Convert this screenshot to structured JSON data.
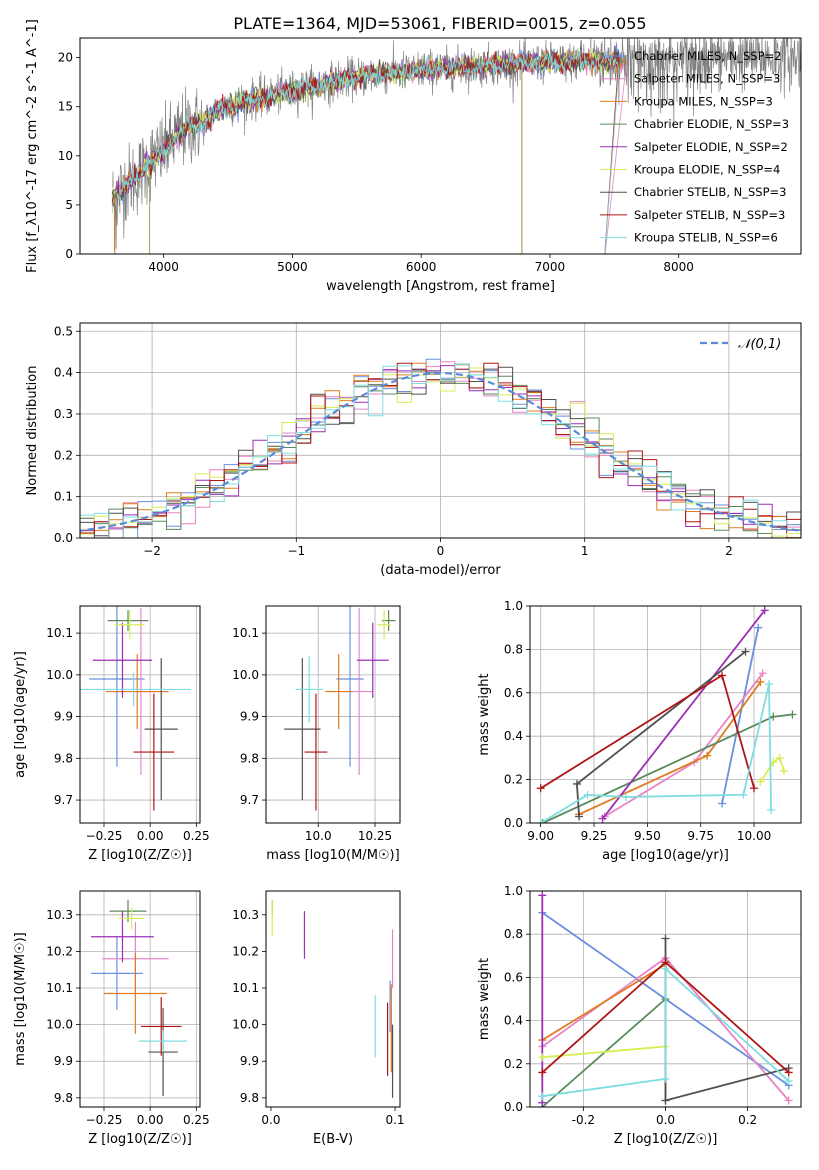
{
  "figure": {
    "title": "PLATE=1364, MJD=53061, FIBERID=0015, z=0.055"
  },
  "series_styles": [
    {
      "name": "Chabrier MILES, N_SSP=2",
      "color": "#6a8fe0"
    },
    {
      "name": "Salpeter MILES, N_SSP=3",
      "color": "#e884c6"
    },
    {
      "name": "Kroupa MILES, N_SSP=3",
      "color": "#e07b1e"
    },
    {
      "name": "Chabrier ELODIE, N_SSP=3",
      "color": "#5a8a5a"
    },
    {
      "name": "Salpeter ELODIE, N_SSP=2",
      "color": "#9b2fb5"
    },
    {
      "name": "Kroupa ELODIE, N_SSP=4",
      "color": "#d8ee55"
    },
    {
      "name": "Chabrier STELIB, N_SSP=3",
      "color": "#505050"
    },
    {
      "name": "Salpeter STELIB, N_SSP=3",
      "color": "#b01515"
    },
    {
      "name": "Kroupa STELIB, N_SSP=6",
      "color": "#7fdde0"
    }
  ],
  "chart_data": [
    {
      "id": "spectrum",
      "type": "line",
      "xlabel": "wavelength [Angstrom, rest frame]",
      "ylabel": "Flux [f_λ10^-17 erg cm^-2 s^-1 A^-1]",
      "xlim": [
        3350,
        8950
      ],
      "ylim": [
        0,
        22
      ],
      "xticks": [
        4000,
        5000,
        6000,
        7000,
        8000
      ],
      "yticks": [
        0,
        5,
        10,
        15,
        20
      ],
      "legend_position": "right",
      "data_color": "#808080",
      "continuum": {
        "x": [
          3600,
          3700,
          3800,
          3900,
          4000,
          4100,
          4200,
          4300,
          4400,
          4600,
          4800,
          5000,
          5200,
          5400,
          5600,
          5800,
          6000,
          6200,
          6400,
          6600,
          6800,
          7000,
          7200,
          7400,
          7600,
          7800,
          8000,
          8200,
          8400,
          8600,
          8800,
          8900
        ],
        "y": [
          5.5,
          7,
          8,
          9.5,
          10.5,
          12,
          13,
          13.2,
          14.5,
          15.5,
          16,
          16.6,
          17.2,
          17.8,
          18.2,
          18.5,
          18.7,
          18.9,
          19.1,
          19.3,
          19.4,
          19.5,
          19.6,
          19.7,
          19.8,
          19.8,
          19.9,
          19.9,
          20,
          20,
          20,
          20
        ]
      },
      "model_range": [
        3600,
        7600
      ],
      "data_range": [
        3600,
        9250
      ],
      "ending_drop_x": 7420
    },
    {
      "id": "residual_hist",
      "type": "histogram",
      "xlabel": "(data-model)/error",
      "ylabel": "Normed distribution",
      "xlim": [
        -2.5,
        2.5
      ],
      "ylim": [
        0,
        0.52
      ],
      "xticks": [
        -2,
        -1,
        0,
        1,
        2
      ],
      "yticks": [
        0.0,
        0.1,
        0.2,
        0.3,
        0.4,
        0.5
      ],
      "grid": true,
      "bin_width": 0.1,
      "legend": "𝒩(0,1)",
      "legend_position": "top-right",
      "normal_curve": {
        "mean": 0,
        "sigma": 1,
        "color": "#5a8ad8"
      }
    },
    {
      "id": "age_vs_Z",
      "type": "errorbar",
      "xlabel": "Z [log10(Z/Z☉)]",
      "ylabel": "age [log10(age/yr)]",
      "xlim": [
        -0.38,
        0.27
      ],
      "ylim": [
        9.645,
        10.165
      ],
      "xticks": [
        -0.25,
        0.0,
        0.25
      ],
      "yticks": [
        9.7,
        9.8,
        9.9,
        10.0,
        10.1
      ],
      "grid": true,
      "points": [
        {
          "s": 0,
          "x": -0.18,
          "xerr": 0.15,
          "y": 9.99,
          "yerr": 0.21
        },
        {
          "s": 1,
          "x": -0.05,
          "xerr": 0.15,
          "y": 9.96,
          "yerr": 0.2
        },
        {
          "s": 2,
          "x": -0.07,
          "xerr": 0.17,
          "y": 9.96,
          "yerr": 0.09
        },
        {
          "s": 3,
          "x": -0.12,
          "xerr": 0.11,
          "y": 10.13,
          "yerr": 0.025
        },
        {
          "s": 4,
          "x": -0.15,
          "xerr": 0.16,
          "y": 10.035,
          "yerr": 0.09
        },
        {
          "s": 5,
          "x": -0.11,
          "xerr": 0.08,
          "y": 10.12,
          "yerr": 0.035
        },
        {
          "s": 6,
          "x": 0.06,
          "xerr": 0.09,
          "y": 9.87,
          "yerr": 0.17
        },
        {
          "s": 7,
          "x": 0.02,
          "xerr": 0.11,
          "y": 9.815,
          "yerr": 0.14
        },
        {
          "s": 8,
          "x": -0.09,
          "xerr": 0.31,
          "y": 9.965,
          "yerr": 0.04
        }
      ]
    },
    {
      "id": "age_vs_mass",
      "type": "errorbar",
      "xlabel": "mass [log10(M/M☉)]",
      "ylabel": "",
      "xlim": [
        9.77,
        10.36
      ],
      "ylim": [
        9.645,
        10.165
      ],
      "xticks": [
        10.0,
        10.25
      ],
      "yticks": [
        9.7,
        9.8,
        9.9,
        10.0,
        10.1
      ],
      "grid": true,
      "points": [
        {
          "s": 0,
          "x": 10.14,
          "xerr": 0.06,
          "y": 9.99,
          "yerr": 0.21
        },
        {
          "s": 1,
          "x": 10.18,
          "xerr": 0.06,
          "y": 9.96,
          "yerr": 0.2
        },
        {
          "s": 2,
          "x": 10.09,
          "xerr": 0.06,
          "y": 9.96,
          "yerr": 0.09
        },
        {
          "s": 3,
          "x": 10.31,
          "xerr": 0.03,
          "y": 10.13,
          "yerr": 0.025
        },
        {
          "s": 4,
          "x": 10.24,
          "xerr": 0.07,
          "y": 10.035,
          "yerr": 0.09
        },
        {
          "s": 5,
          "x": 10.29,
          "xerr": 0.03,
          "y": 10.12,
          "yerr": 0.035
        },
        {
          "s": 6,
          "x": 9.93,
          "xerr": 0.08,
          "y": 9.87,
          "yerr": 0.17
        },
        {
          "s": 7,
          "x": 9.99,
          "xerr": 0.05,
          "y": 9.815,
          "yerr": 0.14
        },
        {
          "s": 8,
          "x": 9.96,
          "xerr": 0.06,
          "y": 9.965,
          "yerr": 0.08
        }
      ]
    },
    {
      "id": "weight_vs_age",
      "type": "line",
      "xlabel": "age [log10(age/yr)]",
      "ylabel": "mass weight",
      "xlim": [
        8.95,
        10.22
      ],
      "ylim": [
        0,
        1
      ],
      "xticks": [
        9.0,
        9.25,
        9.5,
        9.75,
        10.0
      ],
      "yticks": [
        0.0,
        0.2,
        0.4,
        0.6,
        0.8,
        1.0
      ],
      "grid": true,
      "series": [
        {
          "s": 0,
          "x": [
            9.85,
            10.02
          ],
          "y": [
            0.09,
            0.9
          ]
        },
        {
          "s": 1,
          "x": [
            9.3,
            9.72,
            10.04
          ],
          "y": [
            0.03,
            0.28,
            0.69
          ]
        },
        {
          "s": 2,
          "x": [
            9.18,
            9.78,
            10.03
          ],
          "y": [
            0.04,
            0.31,
            0.65
          ]
        },
        {
          "s": 3,
          "x": [
            9.01,
            10.09,
            10.18
          ],
          "y": [
            0.0,
            0.49,
            0.5
          ]
        },
        {
          "s": 4,
          "x": [
            9.29,
            10.05
          ],
          "y": [
            0.02,
            0.98
          ]
        },
        {
          "s": 5,
          "x": [
            10.03,
            10.09,
            10.12,
            10.14
          ],
          "y": [
            0.19,
            0.28,
            0.3,
            0.24
          ]
        },
        {
          "s": 6,
          "x": [
            9.18,
            9.17,
            9.96
          ],
          "y": [
            0.03,
            0.18,
            0.79
          ]
        },
        {
          "s": 7,
          "x": [
            9.0,
            9.85,
            10.0
          ],
          "y": [
            0.16,
            0.68,
            0.16
          ]
        },
        {
          "s": 8,
          "x": [
            9.0,
            9.22,
            9.4,
            9.95,
            10.07,
            10.08
          ],
          "y": [
            0.0,
            0.13,
            0.12,
            0.13,
            0.64,
            0.06
          ]
        }
      ]
    },
    {
      "id": "mass_vs_Z",
      "type": "errorbar",
      "xlabel": "Z [log10(Z/Z☉)]",
      "ylabel": "mass [log10(M/M☉)]",
      "xlim": [
        -0.38,
        0.27
      ],
      "ylim": [
        9.775,
        10.365
      ],
      "xticks": [
        -0.25,
        0.0,
        0.25
      ],
      "yticks": [
        9.8,
        9.9,
        10.0,
        10.1,
        10.2,
        10.3
      ],
      "grid": true,
      "points": [
        {
          "s": 0,
          "x": -0.18,
          "xerr": 0.14,
          "y": 10.14,
          "yerr": 0.1
        },
        {
          "s": 1,
          "x": -0.08,
          "xerr": 0.18,
          "y": 10.18,
          "yerr": 0.1
        },
        {
          "s": 2,
          "x": -0.08,
          "xerr": 0.17,
          "y": 10.085,
          "yerr": 0.11
        },
        {
          "s": 3,
          "x": -0.12,
          "xerr": 0.1,
          "y": 10.31,
          "yerr": 0.03
        },
        {
          "s": 4,
          "x": -0.15,
          "xerr": 0.17,
          "y": 10.24,
          "yerr": 0.07
        },
        {
          "s": 5,
          "x": -0.1,
          "xerr": 0.07,
          "y": 10.29,
          "yerr": 0.03
        },
        {
          "s": 6,
          "x": 0.07,
          "xerr": 0.08,
          "y": 9.925,
          "yerr": 0.12
        },
        {
          "s": 7,
          "x": 0.06,
          "xerr": 0.11,
          "y": 9.995,
          "yerr": 0.08
        },
        {
          "s": 8,
          "x": 0.07,
          "xerr": 0.13,
          "y": 9.955,
          "yerr": 0.03
        }
      ]
    },
    {
      "id": "mass_vs_ebv",
      "type": "errorbar",
      "xlabel": "E(B-V)",
      "ylabel": "",
      "xlim": [
        -0.004,
        0.104
      ],
      "ylim": [
        9.775,
        10.365
      ],
      "xticks": [
        0.0,
        0.1
      ],
      "yticks": [
        9.8,
        9.9,
        10.0,
        10.1,
        10.2,
        10.3
      ],
      "grid": false,
      "points": [
        {
          "s": 0,
          "x": 0.096,
          "y": 10.05,
          "yerr": 0.07
        },
        {
          "s": 1,
          "x": 0.098,
          "y": 10.18,
          "yerr": 0.08
        },
        {
          "s": 2,
          "x": 0.097,
          "y": 9.99,
          "yerr": 0.12
        },
        {
          "s": 3,
          "x": 0.001,
          "y": 10.32,
          "yerr": 0.02
        },
        {
          "s": 4,
          "x": 0.027,
          "y": 10.245,
          "yerr": 0.065
        },
        {
          "s": 5,
          "x": 0.001,
          "y": 10.29,
          "yerr": 0.05
        },
        {
          "s": 6,
          "x": 0.098,
          "y": 9.9,
          "yerr": 0.1
        },
        {
          "s": 7,
          "x": 0.094,
          "y": 9.96,
          "yerr": 0.1
        },
        {
          "s": 8,
          "x": 0.084,
          "y": 9.995,
          "yerr": 0.085
        }
      ]
    },
    {
      "id": "weight_vs_Z",
      "type": "line",
      "xlabel": "Z [log10(Z/Z☉)]",
      "ylabel": "mass weight",
      "xlim": [
        -0.33,
        0.33
      ],
      "ylim": [
        0,
        1
      ],
      "xticks": [
        -0.2,
        0.0,
        0.2
      ],
      "yticks": [
        0.0,
        0.2,
        0.4,
        0.6,
        0.8,
        1.0
      ],
      "grid": true,
      "series": [
        {
          "s": 0,
          "x": [
            -0.3,
            0.3
          ],
          "y": [
            0.9,
            0.1
          ]
        },
        {
          "s": 1,
          "x": [
            -0.3,
            0.0,
            0.3
          ],
          "y": [
            0.28,
            0.69,
            0.03
          ]
        },
        {
          "s": 2,
          "x": [
            -0.3,
            0.0,
            0.0
          ],
          "y": [
            0.31,
            0.66,
            0.03
          ]
        },
        {
          "s": 3,
          "x": [
            -0.3,
            0.0
          ],
          "y": [
            0.0,
            0.5
          ]
        },
        {
          "s": 4,
          "x": [
            -0.3,
            -0.3
          ],
          "y": [
            0.02,
            0.98
          ]
        },
        {
          "s": 5,
          "x": [
            -0.3,
            0.0
          ],
          "y": [
            0.23,
            0.28
          ]
        },
        {
          "s": 6,
          "x": [
            0.0,
            0.0,
            0.3
          ],
          "y": [
            0.78,
            0.03,
            0.18
          ]
        },
        {
          "s": 7,
          "x": [
            -0.3,
            0.0,
            0.3
          ],
          "y": [
            0.16,
            0.67,
            0.16
          ]
        },
        {
          "s": 8,
          "x": [
            -0.3,
            0.0,
            0.0,
            0.3
          ],
          "y": [
            0.05,
            0.13,
            0.64,
            0.12
          ]
        }
      ]
    }
  ]
}
